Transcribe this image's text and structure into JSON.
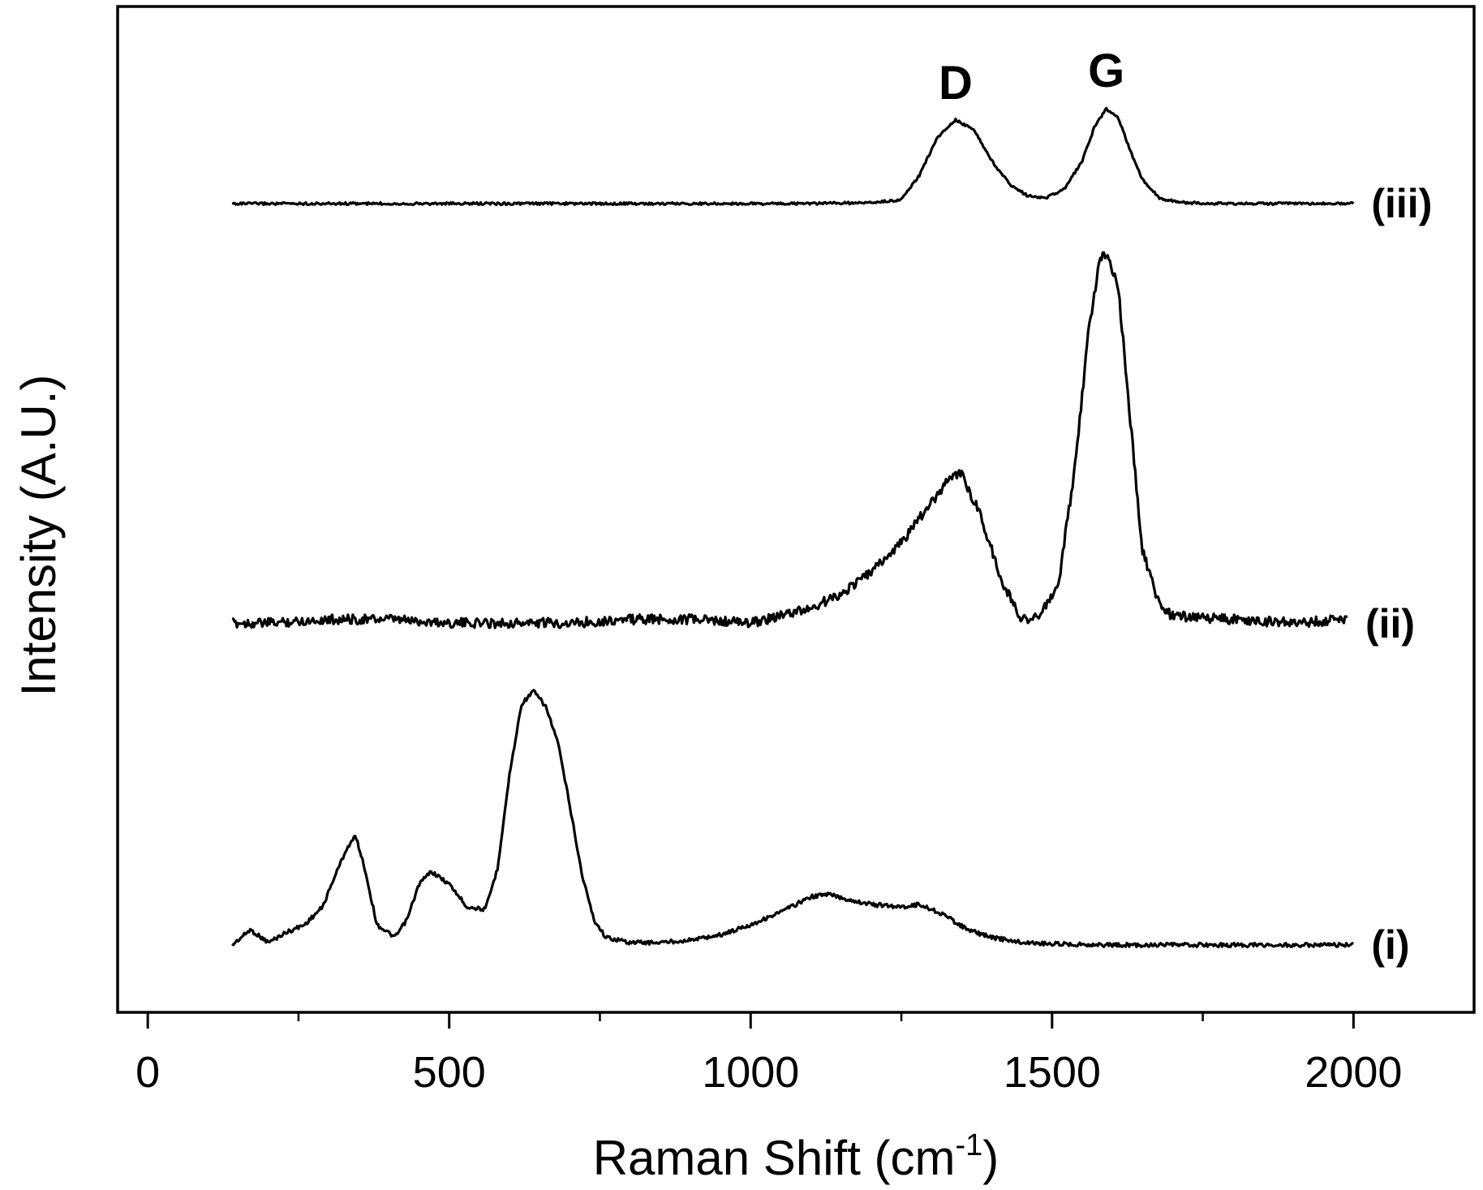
{
  "chart_data": {
    "type": "line",
    "title": "",
    "xlabel": "Raman Shift (cm",
    "xlabel_superscript": "-1",
    "xlabel_suffix": ")",
    "ylabel": "Intensity (A.U.)",
    "xlim": [
      -50,
      2200
    ],
    "xticks": [
      0,
      500,
      1000,
      1500,
      2000
    ],
    "xtick_labels": [
      "0",
      "500",
      "1000",
      "1500",
      "2000"
    ],
    "y_ticks_shown": false,
    "grid": false,
    "legend": "none",
    "line_color": "#000000",
    "annotations": [
      {
        "text": "D",
        "x": 1340
      },
      {
        "text": "G",
        "x": 1590
      }
    ],
    "series": [
      {
        "name": "(i)",
        "x": [
          140,
          170,
          200,
          230,
          260,
          290,
          310,
          330,
          345,
          360,
          380,
          410,
          430,
          450,
          470,
          500,
          530,
          560,
          580,
          600,
          620,
          640,
          660,
          680,
          700,
          720,
          740,
          760,
          800,
          850,
          900,
          950,
          1000,
          1050,
          1100,
          1130,
          1160,
          1200,
          1250,
          1280,
          1320,
          1360,
          1400,
          1450,
          1500,
          1600,
          1700,
          1800,
          1900,
          2000
        ],
        "values": [
          0.0,
          0.06,
          0.01,
          0.05,
          0.08,
          0.15,
          0.27,
          0.38,
          0.43,
          0.3,
          0.08,
          0.03,
          0.1,
          0.24,
          0.29,
          0.24,
          0.15,
          0.14,
          0.3,
          0.67,
          0.95,
          1.0,
          0.94,
          0.8,
          0.55,
          0.28,
          0.1,
          0.03,
          0.01,
          0.01,
          0.02,
          0.04,
          0.08,
          0.13,
          0.19,
          0.2,
          0.18,
          0.16,
          0.15,
          0.16,
          0.12,
          0.06,
          0.03,
          0.01,
          0.005,
          0.0,
          0.0,
          0.0,
          0.0,
          0.0
        ]
      },
      {
        "name": "(ii)",
        "x": [
          140,
          200,
          300,
          400,
          500,
          600,
          700,
          800,
          900,
          1000,
          1050,
          1100,
          1150,
          1200,
          1250,
          1300,
          1330,
          1350,
          1380,
          1420,
          1450,
          1480,
          1510,
          1540,
          1560,
          1580,
          1590,
          1610,
          1630,
          1650,
          1680,
          1700,
          1800,
          1900,
          1990
        ],
        "values": [
          0.0,
          0.0,
          0.01,
          0.01,
          0.0,
          0.0,
          0.0,
          0.01,
          0.01,
          0.0,
          0.02,
          0.04,
          0.08,
          0.14,
          0.22,
          0.33,
          0.4,
          0.41,
          0.3,
          0.1,
          0.01,
          0.02,
          0.1,
          0.45,
          0.8,
          1.0,
          1.01,
          0.92,
          0.55,
          0.2,
          0.04,
          0.02,
          0.01,
          0.0,
          0.01
        ]
      },
      {
        "name": "(iii)",
        "x": [
          140,
          400,
          800,
          1100,
          1200,
          1250,
          1280,
          1310,
          1340,
          1370,
          1400,
          1430,
          1460,
          1490,
          1520,
          1550,
          1570,
          1590,
          1610,
          1630,
          1650,
          1680,
          1720,
          1800,
          2000
        ],
        "values": [
          0.0,
          0.0,
          0.0,
          0.0,
          0.01,
          0.04,
          0.3,
          0.7,
          0.88,
          0.78,
          0.45,
          0.2,
          0.08,
          0.06,
          0.15,
          0.45,
          0.8,
          1.0,
          0.9,
          0.55,
          0.25,
          0.05,
          0.01,
          0.0,
          0.0
        ]
      }
    ]
  }
}
